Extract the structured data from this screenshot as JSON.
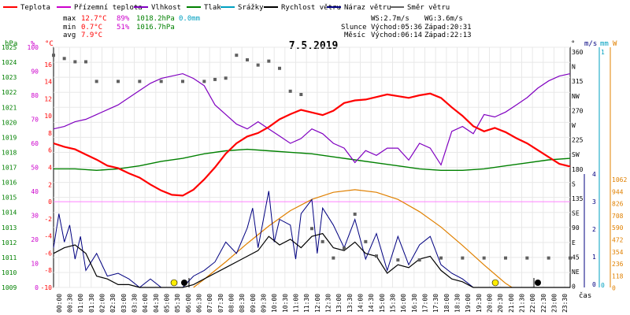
{
  "chart_data": {
    "type": "line",
    "title": "7.5.2019",
    "legend": [
      {
        "key": "temperature",
        "label": "Teplota",
        "color": "#ff0000"
      },
      {
        "key": "feels_like",
        "label": "Přízemní teplota",
        "color": "#cc00cc"
      },
      {
        "key": "humidity",
        "label": "Vlhkost",
        "color": "#8000c0"
      },
      {
        "key": "pressure",
        "label": "Tlak",
        "color": "#008000"
      },
      {
        "key": "rain",
        "label": "Srážky",
        "color": "#00a0c0"
      },
      {
        "key": "wind_speed",
        "label": "Rychlost větru",
        "color": "#000000"
      },
      {
        "key": "wind_gust",
        "label": "Náraz větru",
        "color": "#000080"
      },
      {
        "key": "wind_dir",
        "label": "Směr větru",
        "color": "#606060"
      }
    ],
    "stats": {
      "max": {
        "label": "max",
        "temp": "12.7°C",
        "hum": "89%",
        "pres": "1018.2hPa",
        "rain": "0.0mm"
      },
      "min": {
        "label": "min",
        "temp": "0.7°C",
        "hum": "51%",
        "pres": "1016.7hPa"
      },
      "avg": {
        "label": "avg",
        "temp": "7.9°C"
      }
    },
    "info": {
      "ws": "WS:2.7m/s",
      "wg": "WG:3.6m/s",
      "sun_label": "Slunce",
      "sunrise": "Východ:05:36",
      "sunset": "Západ:20:31",
      "moon_label": "Měsíc",
      "moonrise": "Východ:06:14",
      "moonset": "Západ:22:13"
    },
    "axes": {
      "hpa": {
        "unit": "hPa",
        "range": [
          1009,
          1025
        ],
        "ticks": [
          1025,
          1024,
          1023,
          1022,
          1021,
          1020,
          1019,
          1018,
          1017,
          1016,
          1015,
          1014,
          1013,
          1012,
          1011,
          1010,
          1009
        ],
        "color": "#008000"
      },
      "pct": {
        "unit": "%",
        "range": [
          0,
          100
        ],
        "ticks": [
          100,
          90,
          80,
          70,
          60,
          50,
          40,
          30,
          20,
          10,
          0
        ],
        "color": "#cc00cc"
      },
      "temp": {
        "unit": "°C",
        "range": [
          -10,
          18
        ],
        "ticks": [
          16,
          14,
          12,
          10,
          8,
          6,
          4,
          2,
          0,
          -2,
          -4,
          -6,
          -8,
          -10
        ],
        "color": "#ff0000"
      },
      "dir": {
        "unit": "°",
        "ticks": [
          "360",
          "N",
          "315",
          "NW",
          "270",
          "W",
          "225",
          "SW",
          "180",
          "S",
          "135",
          "SE",
          "90",
          "E",
          "45",
          "NE",
          "0"
        ]
      },
      "ms": {
        "unit": "m/s",
        "range": [
          0,
          4
        ],
        "ticks": [
          "4",
          "3",
          "2",
          "1",
          "0"
        ],
        "color": "#000080"
      },
      "mm": {
        "unit": "mm",
        "ticks": [
          "1",
          "0"
        ],
        "color": "#00a0c0"
      },
      "wm2": {
        "unit": "W",
        "ticks": [
          "1062",
          "944",
          "826",
          "708",
          "590",
          "472",
          "354",
          "236",
          "118",
          "0"
        ],
        "color": "#e08000"
      },
      "x": {
        "ticks": [
          "00:00",
          "00:30",
          "01:00",
          "01:30",
          "02:00",
          "02:30",
          "03:00",
          "03:30",
          "04:00",
          "04:30",
          "05:00",
          "05:30",
          "06:00",
          "06:30",
          "07:00",
          "07:30",
          "08:00",
          "08:30",
          "09:00",
          "09:30",
          "10:00",
          "10:30",
          "11:00",
          "11:30",
          "12:00",
          "12:30",
          "13:00",
          "13:30",
          "14:00",
          "14:30",
          "15:00",
          "15:30",
          "16:00",
          "16:30",
          "17:00",
          "17:30",
          "18:00",
          "18:30",
          "19:00",
          "19:30",
          "20:00",
          "20:30",
          "21:00",
          "21:30",
          "22:00",
          "22:30",
          "23:00",
          "23:30"
        ],
        "label": "čas"
      }
    },
    "series": {
      "temperature": [
        [
          0,
          6.8
        ],
        [
          0.5,
          6.4
        ],
        [
          1,
          6.1
        ],
        [
          1.5,
          5.5
        ],
        [
          2,
          4.9
        ],
        [
          2.5,
          4.2
        ],
        [
          3,
          3.9
        ],
        [
          3.5,
          3.3
        ],
        [
          4,
          2.8
        ],
        [
          4.5,
          2.0
        ],
        [
          5,
          1.3
        ],
        [
          5.5,
          0.8
        ],
        [
          6,
          0.7
        ],
        [
          6.5,
          1.4
        ],
        [
          7,
          2.6
        ],
        [
          7.5,
          4.0
        ],
        [
          8,
          5.6
        ],
        [
          8.5,
          6.8
        ],
        [
          9,
          7.6
        ],
        [
          9.5,
          8.0
        ],
        [
          10,
          8.7
        ],
        [
          10.5,
          9.6
        ],
        [
          11,
          10.2
        ],
        [
          11.5,
          10.7
        ],
        [
          12,
          10.4
        ],
        [
          12.5,
          10.1
        ],
        [
          13,
          10.6
        ],
        [
          13.5,
          11.5
        ],
        [
          14,
          11.8
        ],
        [
          14.5,
          11.9
        ],
        [
          15,
          12.2
        ],
        [
          15.5,
          12.5
        ],
        [
          16,
          12.3
        ],
        [
          16.5,
          12.1
        ],
        [
          17,
          12.4
        ],
        [
          17.5,
          12.6
        ],
        [
          18,
          12.1
        ],
        [
          18.5,
          11.0
        ],
        [
          19,
          10.0
        ],
        [
          19.5,
          8.8
        ],
        [
          20,
          8.2
        ],
        [
          20.5,
          8.6
        ],
        [
          21,
          8.1
        ],
        [
          21.5,
          7.4
        ],
        [
          22,
          6.8
        ],
        [
          22.5,
          6.0
        ],
        [
          23,
          5.2
        ],
        [
          23.5,
          4.4
        ],
        [
          24,
          4.1
        ]
      ],
      "humidity": [
        [
          0,
          66
        ],
        [
          0.5,
          67
        ],
        [
          1,
          69
        ],
        [
          1.5,
          70
        ],
        [
          2,
          72
        ],
        [
          2.5,
          74
        ],
        [
          3,
          76
        ],
        [
          3.5,
          79
        ],
        [
          4,
          82
        ],
        [
          4.5,
          85
        ],
        [
          5,
          87
        ],
        [
          5.5,
          88
        ],
        [
          6,
          89
        ],
        [
          6.5,
          87
        ],
        [
          7,
          84
        ],
        [
          7.5,
          76
        ],
        [
          8,
          72
        ],
        [
          8.5,
          68
        ],
        [
          9,
          66
        ],
        [
          9.5,
          69
        ],
        [
          10,
          66
        ],
        [
          10.5,
          63
        ],
        [
          11,
          60
        ],
        [
          11.5,
          62
        ],
        [
          12,
          66
        ],
        [
          12.5,
          64
        ],
        [
          13,
          60
        ],
        [
          13.5,
          58
        ],
        [
          14,
          52
        ],
        [
          14.5,
          57
        ],
        [
          15,
          55
        ],
        [
          15.5,
          58
        ],
        [
          16,
          58
        ],
        [
          16.5,
          53
        ],
        [
          17,
          60
        ],
        [
          17.5,
          58
        ],
        [
          18,
          51
        ],
        [
          18.5,
          65
        ],
        [
          19,
          67
        ],
        [
          19.5,
          64
        ],
        [
          20,
          72
        ],
        [
          20.5,
          71
        ],
        [
          21,
          73
        ],
        [
          21.5,
          76
        ],
        [
          22,
          79
        ],
        [
          22.5,
          83
        ],
        [
          23,
          86
        ],
        [
          23.5,
          88
        ],
        [
          24,
          89
        ]
      ],
      "pressure": [
        [
          0,
          1016.9
        ],
        [
          1,
          1016.9
        ],
        [
          2,
          1016.8
        ],
        [
          3,
          1016.9
        ],
        [
          4,
          1017.1
        ],
        [
          5,
          1017.4
        ],
        [
          6,
          1017.6
        ],
        [
          7,
          1017.9
        ],
        [
          8,
          1018.1
        ],
        [
          9,
          1018.2
        ],
        [
          10,
          1018.1
        ],
        [
          11,
          1018.0
        ],
        [
          12,
          1017.9
        ],
        [
          13,
          1017.7
        ],
        [
          14,
          1017.5
        ],
        [
          15,
          1017.3
        ],
        [
          16,
          1017.1
        ],
        [
          17,
          1016.9
        ],
        [
          18,
          1016.8
        ],
        [
          19,
          1016.8
        ],
        [
          20,
          1016.9
        ],
        [
          21,
          1017.1
        ],
        [
          22,
          1017.3
        ],
        [
          23,
          1017.5
        ],
        [
          24,
          1017.6
        ]
      ],
      "wind_speed": [
        [
          0,
          1.2
        ],
        [
          0.5,
          1.4
        ],
        [
          1,
          1.5
        ],
        [
          1.5,
          1.2
        ],
        [
          2,
          0.4
        ],
        [
          2.5,
          0.3
        ],
        [
          3,
          0.1
        ],
        [
          3.5,
          0.1
        ],
        [
          4,
          0.0
        ],
        [
          4.5,
          0.0
        ],
        [
          5,
          0.0
        ],
        [
          5.5,
          0.0
        ],
        [
          6,
          0.0
        ],
        [
          6.5,
          0.1
        ],
        [
          7,
          0.3
        ],
        [
          7.5,
          0.5
        ],
        [
          8,
          0.7
        ],
        [
          8.5,
          0.9
        ],
        [
          9,
          1.1
        ],
        [
          9.5,
          1.3
        ],
        [
          10,
          1.8
        ],
        [
          10.5,
          1.5
        ],
        [
          11,
          1.7
        ],
        [
          11.5,
          1.4
        ],
        [
          12,
          1.8
        ],
        [
          12.5,
          1.9
        ],
        [
          13,
          1.4
        ],
        [
          13.5,
          1.3
        ],
        [
          14,
          1.6
        ],
        [
          14.5,
          1.2
        ],
        [
          15,
          1.1
        ],
        [
          15.5,
          0.5
        ],
        [
          16,
          0.8
        ],
        [
          16.5,
          0.7
        ],
        [
          17,
          1.0
        ],
        [
          17.5,
          1.1
        ],
        [
          18,
          0.6
        ],
        [
          18.5,
          0.3
        ],
        [
          19,
          0.2
        ],
        [
          19.5,
          0.0
        ],
        [
          20,
          0.0
        ],
        [
          21,
          0.0
        ],
        [
          22,
          0.0
        ],
        [
          23,
          0.0
        ],
        [
          24,
          0.0
        ]
      ],
      "wind_gust": [
        [
          0,
          1.4
        ],
        [
          0.25,
          2.6
        ],
        [
          0.5,
          1.6
        ],
        [
          0.75,
          2.2
        ],
        [
          1,
          1.0
        ],
        [
          1.25,
          1.8
        ],
        [
          1.5,
          0.6
        ],
        [
          2,
          1.2
        ],
        [
          2.5,
          0.4
        ],
        [
          3,
          0.5
        ],
        [
          3.5,
          0.3
        ],
        [
          4,
          0.0
        ],
        [
          4.5,
          0.3
        ],
        [
          5,
          0.0
        ],
        [
          5.5,
          0.0
        ],
        [
          6,
          0.0
        ],
        [
          6.5,
          0.4
        ],
        [
          7,
          0.6
        ],
        [
          7.5,
          0.9
        ],
        [
          8,
          1.6
        ],
        [
          8.5,
          1.2
        ],
        [
          9,
          2.1
        ],
        [
          9.25,
          2.8
        ],
        [
          9.5,
          1.4
        ],
        [
          10,
          3.4
        ],
        [
          10.25,
          1.6
        ],
        [
          10.5,
          2.4
        ],
        [
          11,
          2.2
        ],
        [
          11.25,
          1.0
        ],
        [
          11.5,
          2.6
        ],
        [
          12,
          3.1
        ],
        [
          12.25,
          1.2
        ],
        [
          12.5,
          2.8
        ],
        [
          13,
          2.2
        ],
        [
          13.5,
          1.4
        ],
        [
          14,
          2.4
        ],
        [
          14.5,
          1.0
        ],
        [
          15,
          1.9
        ],
        [
          15.5,
          0.6
        ],
        [
          16,
          1.8
        ],
        [
          16.5,
          0.8
        ],
        [
          17,
          1.5
        ],
        [
          17.5,
          1.8
        ],
        [
          18,
          0.8
        ],
        [
          18.5,
          0.5
        ],
        [
          19,
          0.3
        ],
        [
          19.5,
          0.0
        ],
        [
          20,
          0.0
        ],
        [
          21,
          0.0
        ],
        [
          22,
          0.0
        ],
        [
          23,
          0.0
        ],
        [
          24,
          0.0
        ]
      ],
      "wind_dir_deg": [
        [
          0,
          355
        ],
        [
          0.5,
          350
        ],
        [
          1,
          345
        ],
        [
          1.5,
          345
        ],
        [
          2,
          315
        ],
        [
          3,
          315
        ],
        [
          4,
          315
        ],
        [
          5,
          315
        ],
        [
          6,
          315
        ],
        [
          7,
          315
        ],
        [
          7.5,
          318
        ],
        [
          8,
          320
        ],
        [
          8.5,
          355
        ],
        [
          9,
          348
        ],
        [
          9.5,
          340
        ],
        [
          10,
          346
        ],
        [
          10.5,
          335
        ],
        [
          11,
          300
        ],
        [
          11.5,
          295
        ],
        [
          12,
          90
        ],
        [
          12.5,
          70
        ],
        [
          13,
          45
        ],
        [
          13.5,
          60
        ],
        [
          14,
          112
        ],
        [
          14.5,
          70
        ],
        [
          15,
          48
        ],
        [
          16,
          42
        ],
        [
          17,
          42
        ],
        [
          18,
          45
        ],
        [
          19,
          45
        ],
        [
          20,
          45
        ],
        [
          21,
          45
        ],
        [
          22,
          45
        ],
        [
          23,
          45
        ],
        [
          24,
          45
        ]
      ],
      "solar": [
        [
          6.5,
          0
        ],
        [
          7,
          80
        ],
        [
          8,
          250
        ],
        [
          9,
          430
        ],
        [
          10,
          600
        ],
        [
          11,
          750
        ],
        [
          12,
          860
        ],
        [
          13,
          930
        ],
        [
          14,
          955
        ],
        [
          15,
          930
        ],
        [
          16,
          860
        ],
        [
          17,
          740
        ],
        [
          18,
          590
        ],
        [
          19,
          410
        ],
        [
          20,
          220
        ],
        [
          21,
          40
        ],
        [
          21.3,
          0
        ]
      ]
    }
  }
}
